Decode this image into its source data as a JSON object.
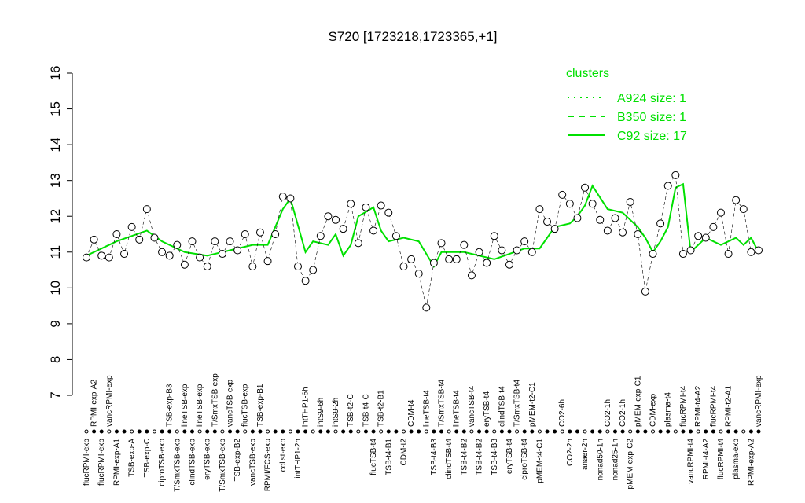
{
  "chart_data": {
    "type": "scatter",
    "title": "S720 [1723218,1723365,+1]",
    "categories": [
      "flucRPMI-exp",
      "RPMI-exp-A2",
      "flucRPMI-exp",
      "vancRPMI-exp",
      "RPMI-exp-A1",
      null,
      "TSB-exp-A",
      null,
      "TSB-exp-C",
      null,
      "ciproTSB-exp",
      "TSB-exp-B3",
      "T/SmxTSB-exp",
      "lineTSB-exp",
      "clindTSB-exp",
      "lineTSB-exp",
      "eryTSB-exp",
      "T/SmxTSB-exp",
      "T/SmxTSB-exp",
      "vancTSB-exp",
      "TSB-exp-B2",
      "flucTSB-exp",
      "vancTSB-exp",
      "TSB-exp-B1",
      "RPMI/FCS-exp",
      null,
      "colist-exp",
      null,
      "intTHP1-2h",
      "intTHP1-6h",
      null,
      "intS9-6h",
      null,
      "intS9-2h",
      null,
      "TSB-t2-C",
      null,
      "TSB-t4-C",
      "flucTSB-t4",
      "TSB-t2-B1",
      "TSB-t4-B1",
      null,
      "CDM-t2",
      "CDM-t4",
      null,
      "lineTSB-t4",
      "TSB-t4-B3",
      "T/SmxTSB-t4",
      "clindTSB-t4",
      "lineTSB-t4",
      "TSB-t4-B2",
      "vancTSB-t4",
      "TSB-t4-B2",
      "eryTSB-t4",
      "TSB-t4-B3",
      "clindTSB-t4",
      "eryTSB-t4",
      "T/SmxTSB-t4",
      "ciproTSB-t4",
      "pMEM-t2-C1",
      "pMEM-t4-C1",
      null,
      null,
      "CO2-6h",
      "CO2-2h",
      null,
      "anaer-2h",
      null,
      "nonad50-1h",
      "CO2-1h",
      "nonad25-1h",
      "CO2-1h",
      "pMEM-exp-C2",
      "pMEM-exp-C1",
      null,
      "CDM-exp",
      null,
      "plasma-t4",
      null,
      "flucRPMI-t4",
      "vancRPMI-t4",
      "RPMI-t4-A2",
      "RPMI-t4-A2",
      "flucRPMI-t4",
      "flucRPMI-t4",
      "RPMI-t2-A1",
      "plasma-exp",
      null,
      "RPMI-exp-A2",
      "vancRPMI-exp"
    ],
    "values": [
      10.85,
      11.35,
      10.9,
      10.85,
      11.5,
      10.95,
      11.7,
      11.35,
      12.2,
      11.4,
      11.0,
      10.9,
      11.2,
      10.65,
      11.3,
      10.85,
      10.6,
      11.3,
      10.95,
      11.3,
      11.05,
      11.5,
      10.6,
      11.55,
      10.75,
      11.5,
      12.55,
      12.5,
      10.6,
      10.2,
      10.5,
      11.45,
      12.0,
      11.9,
      11.65,
      12.35,
      11.25,
      12.25,
      11.6,
      12.3,
      12.1,
      11.45,
      10.6,
      10.8,
      10.4,
      9.45,
      10.7,
      11.25,
      10.8,
      10.8,
      11.2,
      10.35,
      11.0,
      10.7,
      11.45,
      11.05,
      10.65,
      11.05,
      11.3,
      11.0,
      12.2,
      11.85,
      11.65,
      12.6,
      12.35,
      11.95,
      12.8,
      12.35,
      11.9,
      11.6,
      11.95,
      11.55,
      12.4,
      11.5,
      9.9,
      10.95,
      11.8,
      12.85,
      13.15,
      10.95,
      11.05,
      11.45,
      11.4,
      11.7,
      12.1,
      10.95,
      12.45,
      12.2,
      11.0,
      11.05
    ],
    "line": {
      "name": "C92 size: 17",
      "color": "#00e000",
      "x": [
        0,
        4,
        8,
        10,
        13,
        16,
        19,
        22,
        24,
        26,
        27,
        29,
        30,
        32,
        33,
        34,
        35,
        36,
        38,
        39,
        40,
        42,
        44,
        46,
        47,
        50,
        54,
        58,
        60,
        62,
        64,
        65,
        66,
        67,
        69,
        71,
        73,
        74,
        75,
        76,
        77,
        78,
        79,
        80,
        82,
        84,
        86,
        87,
        88,
        89
      ],
      "values": [
        10.9,
        11.3,
        11.6,
        11.3,
        11.0,
        10.9,
        11.05,
        11.2,
        11.2,
        12.2,
        12.5,
        11.0,
        11.3,
        11.2,
        11.5,
        10.9,
        11.2,
        12.0,
        12.25,
        11.6,
        11.3,
        11.4,
        11.3,
        10.6,
        11.0,
        11.0,
        10.8,
        11.1,
        11.1,
        11.7,
        11.8,
        12.0,
        12.3,
        12.85,
        12.2,
        12.1,
        11.7,
        11.4,
        11.0,
        11.3,
        11.7,
        12.8,
        12.9,
        11.0,
        11.4,
        11.2,
        11.4,
        11.2,
        11.4,
        11.0
      ]
    },
    "legend_title": "clusters",
    "legend": [
      {
        "label": "A924 size: 1",
        "dash": "dotted"
      },
      {
        "label": "B350 size: 1",
        "dash": "dashed"
      },
      {
        "label": "C92 size: 17",
        "dash": "solid"
      }
    ],
    "ylim": [
      7,
      16
    ],
    "yticks": [
      7,
      8,
      9,
      10,
      11,
      12,
      13,
      14,
      15,
      16
    ]
  }
}
